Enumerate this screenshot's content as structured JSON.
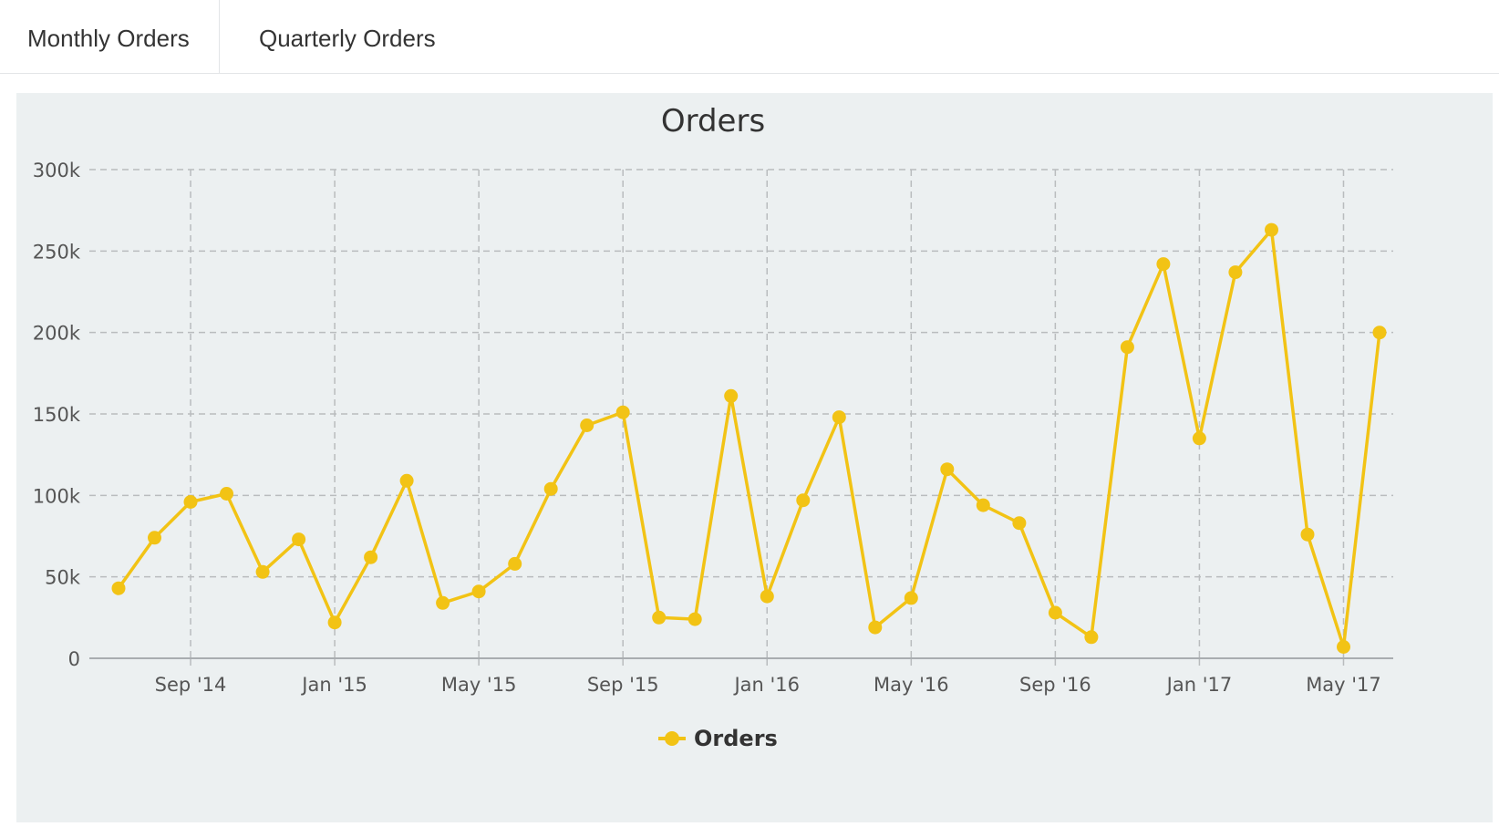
{
  "tabs": [
    {
      "label": "Monthly Orders",
      "active": true
    },
    {
      "label": "Quarterly Orders",
      "active": false
    }
  ],
  "colors": {
    "series": "#f2c315",
    "panel_bg": "#ecf0f1",
    "grid": "#b9bcbe"
  },
  "chart_data": {
    "type": "line",
    "title": "Orders",
    "xlabel": "",
    "ylabel": "",
    "grid": true,
    "legend": "bottom-center",
    "ylim": [
      0,
      300000
    ],
    "y_ticks": [
      {
        "value": 0,
        "label": "0"
      },
      {
        "value": 50000,
        "label": "50k"
      },
      {
        "value": 100000,
        "label": "100k"
      },
      {
        "value": 150000,
        "label": "150k"
      },
      {
        "value": 200000,
        "label": "200k"
      },
      {
        "value": 250000,
        "label": "250k"
      },
      {
        "value": 300000,
        "label": "300k"
      }
    ],
    "x_ticks": [
      {
        "date": "2014-09",
        "label": "Sep '14"
      },
      {
        "date": "2015-01",
        "label": "Jan '15"
      },
      {
        "date": "2015-05",
        "label": "May '15"
      },
      {
        "date": "2015-09",
        "label": "Sep '15"
      },
      {
        "date": "2016-01",
        "label": "Jan '16"
      },
      {
        "date": "2016-05",
        "label": "May '16"
      },
      {
        "date": "2016-09",
        "label": "Sep '16"
      },
      {
        "date": "2017-01",
        "label": "Jan '17"
      },
      {
        "date": "2017-05",
        "label": "May '17"
      }
    ],
    "xlim": [
      "2014-07",
      "2017-06"
    ],
    "series": [
      {
        "name": "Orders",
        "points": [
          {
            "date": "2014-07",
            "value": 43000
          },
          {
            "date": "2014-08",
            "value": 74000
          },
          {
            "date": "2014-09",
            "value": 96000
          },
          {
            "date": "2014-10",
            "value": 101000
          },
          {
            "date": "2014-11",
            "value": 53000
          },
          {
            "date": "2014-12",
            "value": 73000
          },
          {
            "date": "2015-01",
            "value": 22000
          },
          {
            "date": "2015-02",
            "value": 62000
          },
          {
            "date": "2015-03",
            "value": 109000
          },
          {
            "date": "2015-04",
            "value": 34000
          },
          {
            "date": "2015-05",
            "value": 41000
          },
          {
            "date": "2015-06",
            "value": 58000
          },
          {
            "date": "2015-07",
            "value": 104000
          },
          {
            "date": "2015-08",
            "value": 143000
          },
          {
            "date": "2015-09",
            "value": 151000
          },
          {
            "date": "2015-10",
            "value": 25000
          },
          {
            "date": "2015-11",
            "value": 24000
          },
          {
            "date": "2015-12",
            "value": 161000
          },
          {
            "date": "2016-01",
            "value": 38000
          },
          {
            "date": "2016-02",
            "value": 97000
          },
          {
            "date": "2016-03",
            "value": 148000
          },
          {
            "date": "2016-04",
            "value": 19000
          },
          {
            "date": "2016-05",
            "value": 37000
          },
          {
            "date": "2016-06",
            "value": 116000
          },
          {
            "date": "2016-07",
            "value": 94000
          },
          {
            "date": "2016-08",
            "value": 83000
          },
          {
            "date": "2016-09",
            "value": 28000
          },
          {
            "date": "2016-10",
            "value": 13000
          },
          {
            "date": "2016-11",
            "value": 191000
          },
          {
            "date": "2016-12",
            "value": 242000
          },
          {
            "date": "2017-01",
            "value": 135000
          },
          {
            "date": "2017-02",
            "value": 237000
          },
          {
            "date": "2017-03",
            "value": 263000
          },
          {
            "date": "2017-04",
            "value": 76000
          },
          {
            "date": "2017-05",
            "value": 7000
          },
          {
            "date": "2017-06",
            "value": 200000
          }
        ]
      }
    ]
  }
}
